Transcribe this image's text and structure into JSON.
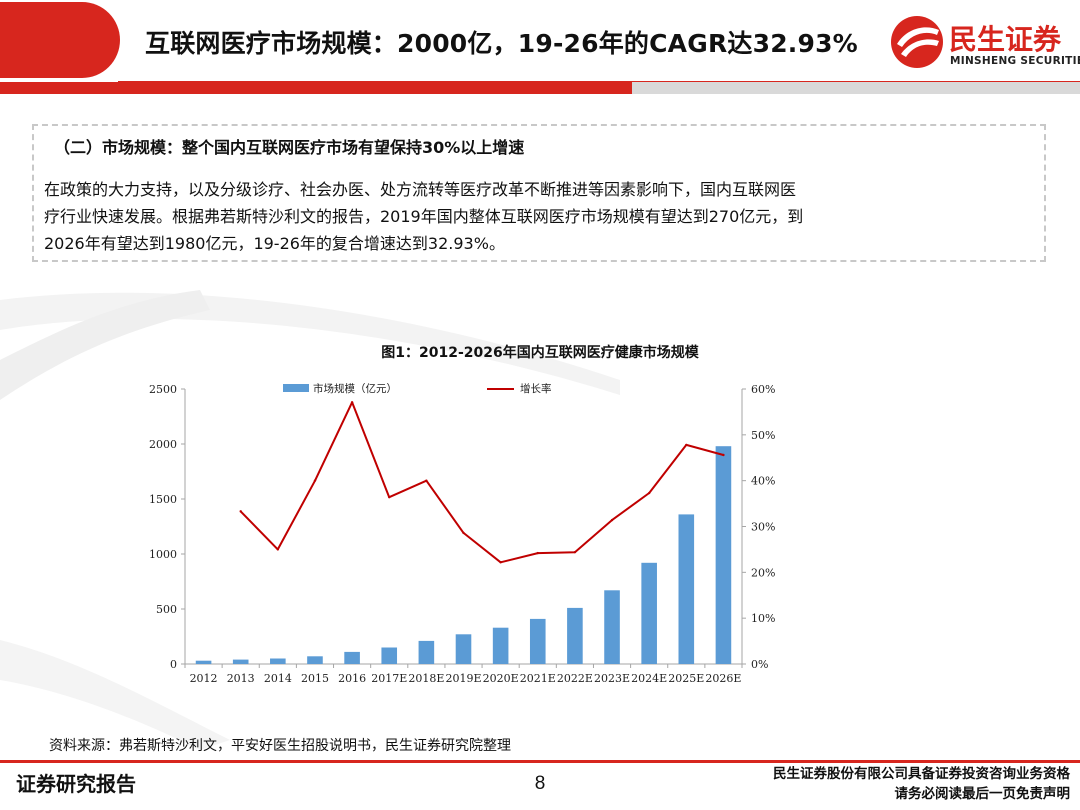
{
  "header": {
    "title": "互联网医疗市场规模：2000亿，19-26年的CAGR达32.93%",
    "logo_cn": "民生证券",
    "logo_en": "MINSHENG SECURITIES"
  },
  "info": {
    "heading": "（二）市场规模：整个国内互联网医疗市场有望保持30%以上增速",
    "line1": "在政策的大力支持，以及分级诊疗、社会办医、处方流转等医疗改革不断推进等因素影响下，国内互联网医",
    "line2": "疗行业快速发展。根据弗若斯特沙利文的报告，2019年国内整体互联网医疗市场规模有望达到270亿元，到",
    "line3": "2026年有望达到1980亿元，19-26年的复合增速达到32.93%。"
  },
  "chart_data": {
    "type": "bar",
    "title": "图1：2012-2026年国内互联网医疗健康市场规模",
    "categories": [
      "2012",
      "2013",
      "2014",
      "2015",
      "2016",
      "2017E",
      "2018E",
      "2019E",
      "2020E",
      "2021E",
      "2022E",
      "2023E",
      "2024E",
      "2025E",
      "2026E"
    ],
    "series": [
      {
        "name": "市场规模（亿元）",
        "type": "bar",
        "axis": "left",
        "color": "#5b9bd5",
        "values": [
          30,
          40,
          50,
          70,
          110,
          150,
          210,
          270,
          330,
          410,
          510,
          670,
          920,
          1360,
          1980
        ]
      },
      {
        "name": "增长率",
        "type": "line",
        "axis": "right",
        "color": "#c00000",
        "values": [
          null,
          0.333,
          0.25,
          0.4,
          0.571,
          0.364,
          0.4,
          0.286,
          0.222,
          0.242,
          0.244,
          0.314,
          0.373,
          0.478,
          0.456
        ]
      }
    ],
    "ylim_left": [
      0,
      2500
    ],
    "yticks_left": [
      "0",
      "500",
      "1000",
      "1500",
      "2000",
      "2500"
    ],
    "ylim_right": [
      0,
      0.6
    ],
    "yticks_right": [
      "0%",
      "10%",
      "20%",
      "30%",
      "40%",
      "50%",
      "60%"
    ],
    "legend_position": "top",
    "grid": false
  },
  "source": "资料来源：弗若斯特沙利文，平安好医生招股说明书，民生证券研究院整理",
  "footer": {
    "left": "证券研究报告",
    "page": "8",
    "right_line1": "民生证券股份有限公司具备证券投资咨询业务资格",
    "right_line2": "请务必阅读最后一页免责声明"
  },
  "colors": {
    "brand_red": "#d7261e",
    "bar_blue": "#5b9bd5",
    "line_red": "#c00000"
  }
}
